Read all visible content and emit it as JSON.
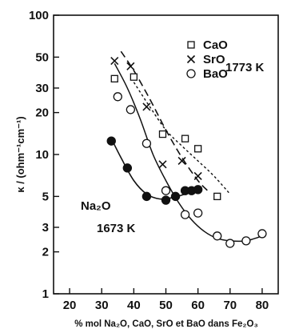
{
  "chart_data": {
    "type": "scatter",
    "title": "",
    "xlabel": "% mol Na₂O, CaO, SrO et BaO dans Fe₂O₃",
    "ylabel": "κ / (ohm⁻¹cm⁻¹)",
    "xlim": [
      15,
      85
    ],
    "ylim": [
      1,
      100
    ],
    "yscale": "log",
    "xticks": [
      "20",
      "30",
      "40",
      "50",
      "60",
      "70",
      "80"
    ],
    "yticks": [
      "1",
      "2",
      "3",
      "5",
      "10",
      "20",
      "30",
      "50",
      "100"
    ],
    "grid": false,
    "legend_position": "top-right",
    "annotations": [
      {
        "text": "1773 K",
        "x": 74,
        "y": 45
      },
      {
        "text": "Na₂O",
        "x": 29,
        "y": 3.9
      },
      {
        "text": "1673 K",
        "x": 34,
        "y": 2.3
      }
    ],
    "series": [
      {
        "name": "CaO",
        "marker": "square",
        "x": [
          34,
          40,
          49,
          56,
          60,
          66
        ],
        "y": [
          35,
          36,
          14,
          13,
          11,
          5
        ],
        "curve_x": [
          40,
          45,
          50,
          55,
          60,
          65,
          70
        ],
        "curve_y": [
          33,
          22,
          15,
          11.5,
          9,
          7,
          5.2
        ]
      },
      {
        "name": "SrO",
        "marker": "x",
        "x": [
          34,
          39,
          44,
          49,
          55,
          60
        ],
        "y": [
          47,
          43,
          22,
          8.5,
          9,
          7
        ],
        "curve_x": [
          36,
          40,
          45,
          50,
          55,
          60,
          63
        ],
        "curve_y": [
          55,
          40,
          25,
          15,
          9.5,
          6.5,
          5.5
        ]
      },
      {
        "name": "BaO",
        "marker": "circle",
        "x": [
          35,
          39,
          44,
          50,
          56,
          60,
          66,
          70,
          75,
          80
        ],
        "y": [
          26,
          21,
          12,
          5.5,
          3.7,
          3.8,
          2.6,
          2.3,
          2.4,
          2.7
        ],
        "curve_x": [
          34,
          38,
          42,
          46,
          50,
          54,
          58,
          62,
          66,
          70,
          75,
          80
        ],
        "curve_y": [
          45,
          30,
          18,
          10,
          6.5,
          4.5,
          3.4,
          2.8,
          2.5,
          2.4,
          2.4,
          2.6
        ]
      },
      {
        "name": "Na₂O",
        "marker": "filled-circle",
        "x": [
          33,
          38,
          44,
          50,
          53,
          56,
          58,
          60
        ],
        "y": [
          12.5,
          8,
          5,
          4.7,
          5,
          5.5,
          5.5,
          5.6
        ],
        "curve_x": [
          33,
          36,
          40,
          44,
          48,
          52,
          56,
          60
        ],
        "curve_y": [
          13,
          9.5,
          6.5,
          5.2,
          4.8,
          4.9,
          5.2,
          5.6
        ]
      }
    ]
  }
}
